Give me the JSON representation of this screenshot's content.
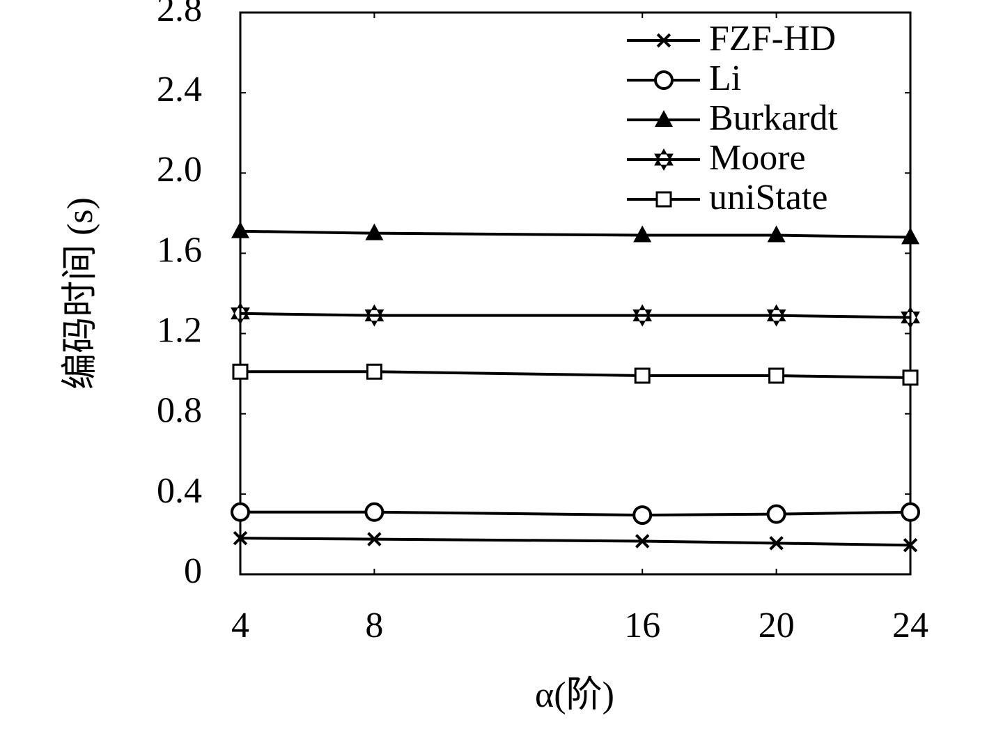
{
  "chart_data": {
    "type": "line",
    "x_label": "α(阶)",
    "y_label": "编码时间 (s)",
    "x": [
      4,
      8,
      16,
      20,
      24
    ],
    "xlim": [
      4,
      24
    ],
    "xticks": [
      4,
      8,
      16,
      20,
      24
    ],
    "ylim": [
      0,
      2.8
    ],
    "yticks": [
      0,
      0.4,
      0.8,
      1.2,
      1.6,
      {
        "value": 2,
        "label": "2.0"
      },
      2.4,
      2.8
    ],
    "grid": false,
    "legend": "upper right",
    "series": [
      {
        "name": "FZF-HD",
        "color": "#000000",
        "marker": "x",
        "values": [
          0.18,
          0.175,
          0.165,
          0.155,
          0.145
        ]
      },
      {
        "name": "Li",
        "color": "#000000",
        "marker": "circle",
        "values": [
          0.31,
          0.31,
          0.295,
          0.3,
          0.31
        ]
      },
      {
        "name": "Burkardt",
        "color": "#000000",
        "marker": "triangle",
        "values": [
          1.71,
          1.7,
          1.69,
          1.69,
          1.68
        ]
      },
      {
        "name": "Moore",
        "color": "#000000",
        "marker": "star",
        "values": [
          1.3,
          1.29,
          1.29,
          1.29,
          1.28
        ]
      },
      {
        "name": "uniState",
        "color": "#000000",
        "marker": "square",
        "values": [
          1.01,
          1.01,
          0.99,
          0.99,
          0.98
        ]
      }
    ]
  }
}
